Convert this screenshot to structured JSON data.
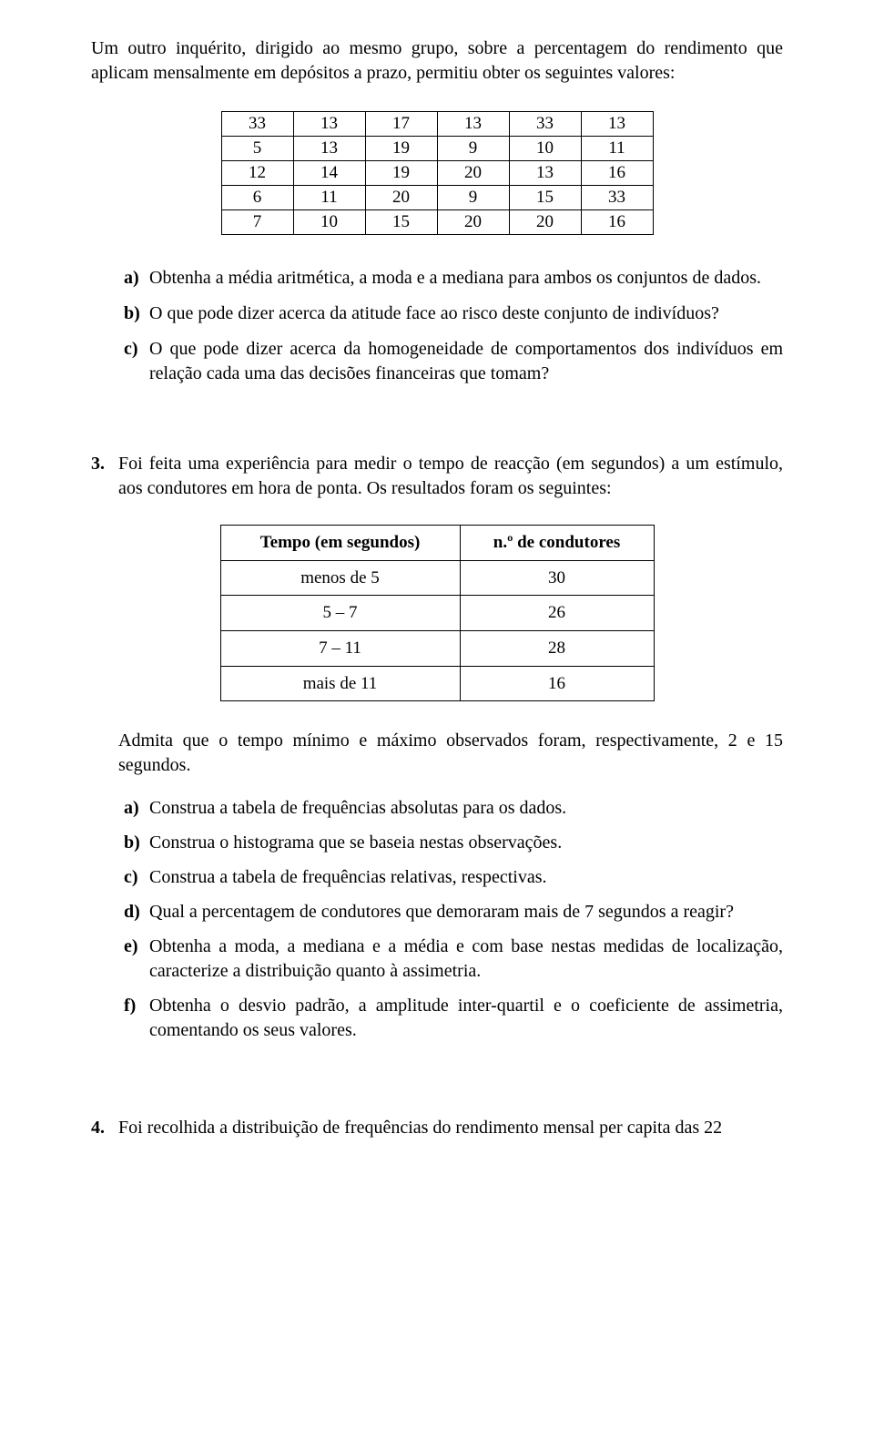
{
  "intro": "Um outro inquérito, dirigido ao mesmo grupo, sobre a percentagem do rendimento que aplicam mensalmente em depósitos a prazo, permitiu obter os seguintes valores:",
  "data_rows": [
    [
      "33",
      "13",
      "17",
      "13",
      "33",
      "13"
    ],
    [
      "5",
      "13",
      "19",
      "9",
      "10",
      "11"
    ],
    [
      "12",
      "14",
      "19",
      "20",
      "13",
      "16"
    ],
    [
      "6",
      "11",
      "20",
      "9",
      "15",
      "33"
    ],
    [
      "7",
      "10",
      "15",
      "20",
      "20",
      "16"
    ]
  ],
  "q_abc": {
    "a": {
      "label": "a)",
      "text": "Obtenha a média aritmética, a moda e a mediana para ambos os conjuntos de dados."
    },
    "b": {
      "label": "b)",
      "text": "O que pode dizer acerca da atitude face ao risco deste conjunto de indivíduos?"
    },
    "c": {
      "label": "c)",
      "text": "O que pode dizer acerca da homogeneidade de comportamentos dos indivíduos em relação cada uma das decisões financeiras que tomam?"
    }
  },
  "q3_num": "3.",
  "q3_text": "Foi feita uma experiência para medir o tempo de reacção (em segundos) a um estímulo, aos condutores em hora de ponta. Os resultados foram os seguintes:",
  "cond_header_a": "Tempo (em segundos)",
  "cond_header_b": "n.º de condutores",
  "cond_rows": [
    {
      "a": "menos de 5",
      "b": "30"
    },
    {
      "a": "5 – 7",
      "b": "26"
    },
    {
      "a": "7 – 11",
      "b": "28"
    },
    {
      "a": "mais de 11",
      "b": "16"
    }
  ],
  "admit": "Admita que o tempo mínimo e máximo observados foram, respectivamente, 2 e 15 segundos.",
  "q3_abcdef": {
    "a": {
      "label": "a)",
      "text": "Construa a tabela de frequências absolutas para os dados."
    },
    "b": {
      "label": "b)",
      "text": "Construa o histograma que se baseia nestas observações."
    },
    "c": {
      "label": "c)",
      "text": "Construa a tabela de frequências relativas, respectivas."
    },
    "d": {
      "label": "d)",
      "text": "Qual a percentagem de condutores que demoraram mais de 7 segundos a reagir?"
    },
    "e": {
      "label": "e)",
      "text": "Obtenha a moda, a mediana e a média e com base nestas medidas de localização, caracterize a distribuição quanto à assimetria."
    },
    "f": {
      "label": "f)",
      "text": "Obtenha o desvio padrão, a amplitude inter-quartil e o coeficiente de assimetria, comentando os seus valores."
    }
  },
  "q4_num": "4.",
  "q4_text": "Foi recolhida a distribuição de frequências do rendimento mensal per capita das 22"
}
